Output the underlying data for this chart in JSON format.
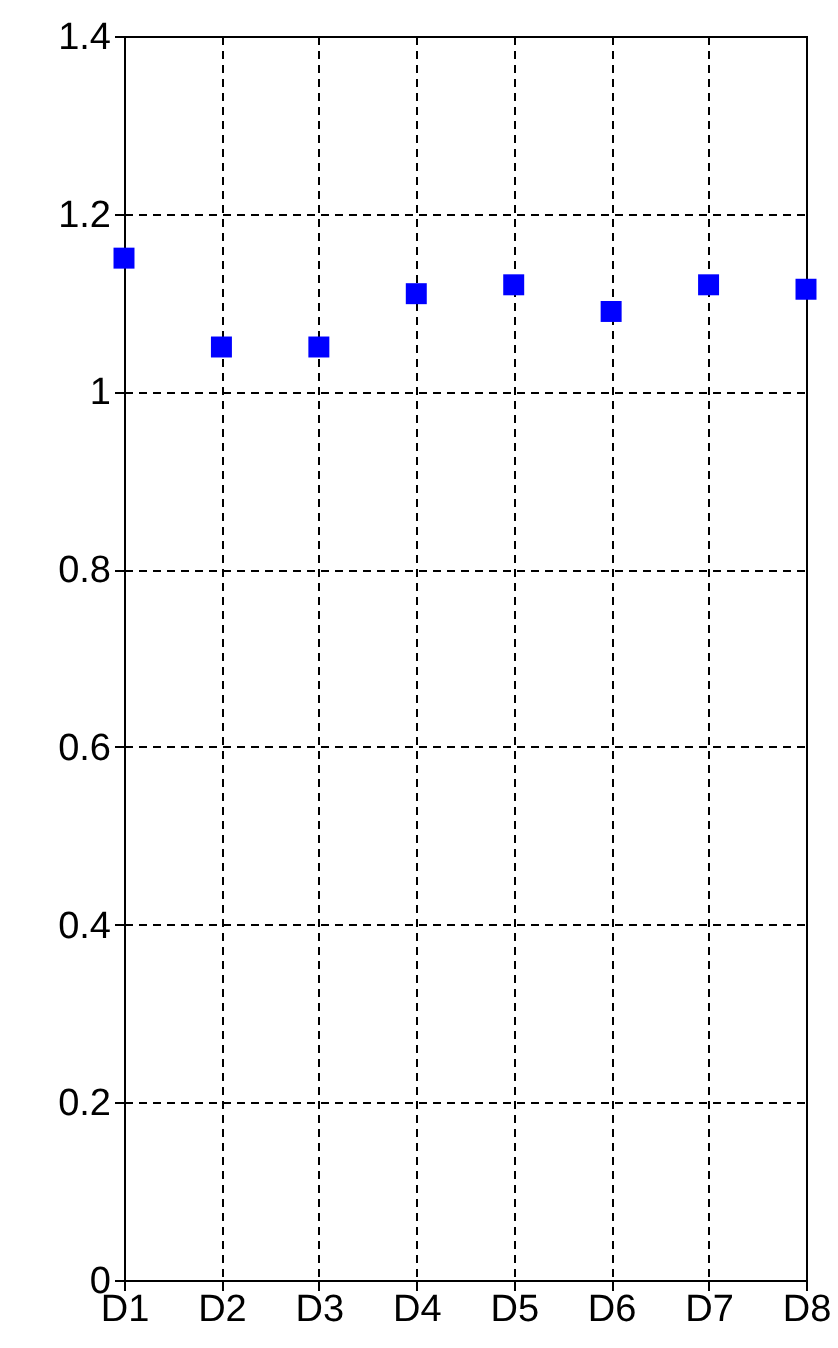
{
  "chart_data": {
    "type": "scatter",
    "categories": [
      "D1",
      "D2",
      "D3",
      "D4",
      "D5",
      "D6",
      "D7",
      "D8"
    ],
    "series": [
      {
        "color": "#0000ff",
        "values": [
          1.15,
          1.05,
          1.05,
          1.11,
          1.12,
          1.09,
          1.12,
          1.115
        ]
      }
    ],
    "ylim": [
      0,
      1.4
    ],
    "yticks": [
      0,
      0.2,
      0.4,
      0.6,
      0.8,
      1,
      1.2,
      1.4
    ],
    "grid": true,
    "marker": "square"
  }
}
